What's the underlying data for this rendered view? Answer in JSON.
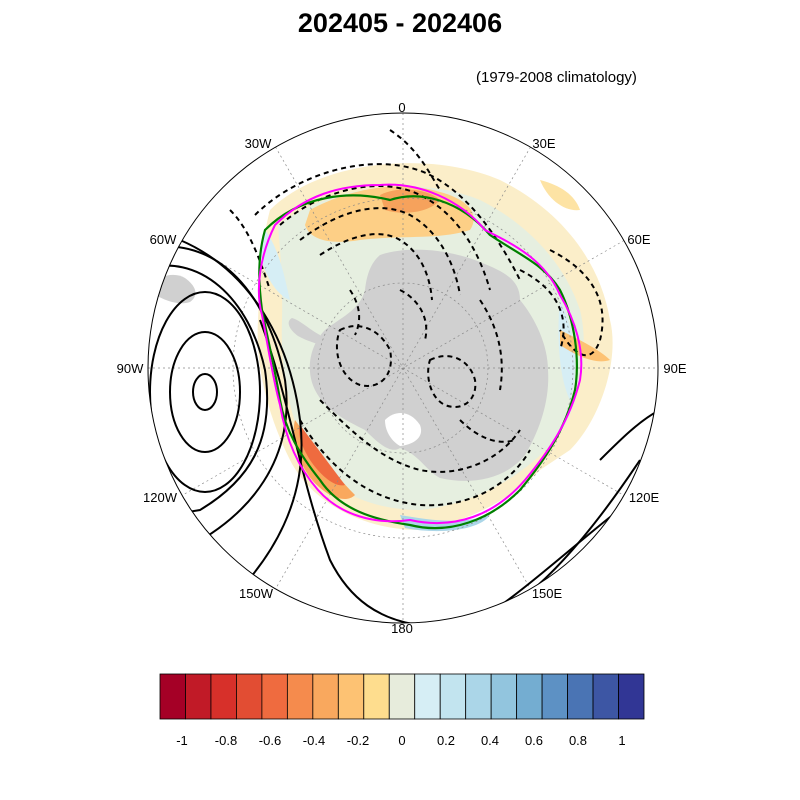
{
  "title": "202405 - 202406",
  "subtitle": "(1979-2008 climatology)",
  "map": {
    "projection": "south polar stereographic",
    "longitude_labels": [
      {
        "id": "0",
        "text": "0"
      },
      {
        "id": "30E",
        "text": "30E"
      },
      {
        "id": "60E",
        "text": "60E"
      },
      {
        "id": "90E",
        "text": "90E"
      },
      {
        "id": "120E",
        "text": "120E"
      },
      {
        "id": "150E",
        "text": "150E"
      },
      {
        "id": "180",
        "text": "180"
      },
      {
        "id": "150W",
        "text": "150W"
      },
      {
        "id": "120W",
        "text": "120W"
      },
      {
        "id": "90W",
        "text": "90W"
      },
      {
        "id": "60W",
        "text": "60W"
      },
      {
        "id": "30W",
        "text": "30W"
      }
    ],
    "colors": {
      "land": "#d0d0d0",
      "ocean": "#ffffff",
      "sea_ice_edge_current": "#ff00ff",
      "sea_ice_edge_climatology": "#008000",
      "contours": "#000000",
      "grid": "#888888"
    }
  },
  "colorbar": {
    "colors": [
      "#a50026",
      "#c11a27",
      "#d7302a",
      "#e24d33",
      "#ef6b3f",
      "#f58b4d",
      "#f9a85e",
      "#fdc273",
      "#fedd8e",
      "#e7ecdc",
      "#d6eef5",
      "#c2e4ef",
      "#abd6e8",
      "#92c5de",
      "#74add1",
      "#5d91c4",
      "#4a74b4",
      "#3d56a4",
      "#313695"
    ],
    "tick_labels": [
      "-1",
      "-0.8",
      "-0.6",
      "-0.4",
      "-0.2",
      "0",
      "0.2",
      "0.4",
      "0.6",
      "0.8",
      "1"
    ]
  }
}
